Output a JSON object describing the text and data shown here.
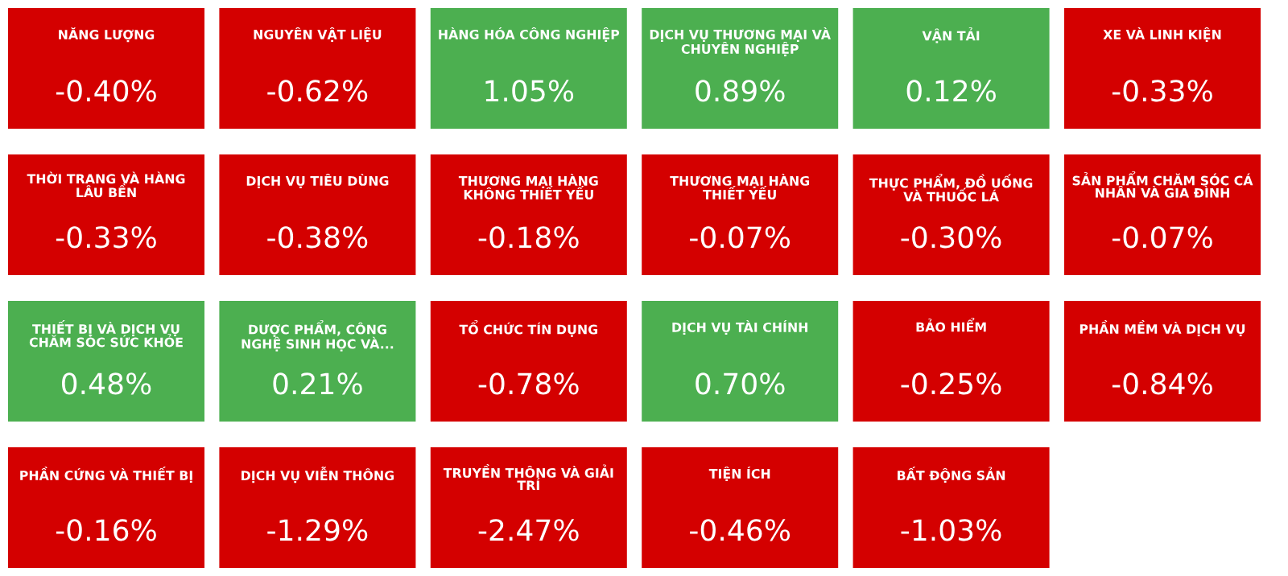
{
  "chart_data": {
    "type": "other",
    "categories": [
      "NĂNG LƯỢNG",
      "NGUYÊN VẬT LIỆU",
      "HÀNG HÓA CÔNG NGHIỆP",
      "DỊCH VỤ THƯƠNG MẠI VÀ\nCHUYÊN NGHIỆP",
      "VẬN TẢI",
      "XE VÀ LINH KIỆN",
      "THỜI TRANG VÀ HÀNG\nLÂU BỀN",
      "DỊCH VỤ TIÊU DÙNG",
      "THƯƠNG MẠI HÀNG\nKHÔNG THIẾT YẾU",
      "THƯƠNG MẠI HÀNG\nTHIẾT YẾU",
      "THỰC PHẨM, ĐỒ UỐNG\nVÀ THUỐC LÁ",
      "SẢN PHẨM CHĂM SÓC CÁ\nNHÂN VÀ GIA ĐÌNH",
      "THIẾT BỊ VÀ DỊCH VỤ\nCHĂM SÓC SỨC KHỎE",
      "DƯỢC PHẨM, CÔNG\nNGHỆ SINH HỌC VÀ...",
      "TỔ CHỨC TÍN DỤNG",
      "DỊCH VỤ TÀI CHÍNH",
      "BẢO HIỂM",
      "PHẦN MỀM VÀ DỊCH VỤ",
      "PHẦN CỨNG VÀ THIẾT BỊ",
      "DỊCH VỤ VIỄN THÔNG",
      "TRUYỀN THÔNG VÀ GIẢI\nTRÍ",
      "TIỆN ÍCH",
      "BẤT ĐỘNG SẢN"
    ],
    "values": [
      -0.4,
      -0.62,
      1.05,
      0.89,
      0.12,
      -0.33,
      -0.33,
      -0.38,
      -0.18,
      -0.07,
      -0.3,
      -0.07,
      0.48,
      0.21,
      -0.78,
      0.7,
      -0.25,
      -0.84,
      -0.16,
      -1.29,
      -2.47,
      -0.46,
      -1.03
    ],
    "value_labels": [
      "-0.40%",
      "-0.62%",
      "1.05%",
      "0.89%",
      "0.12%",
      "-0.33%",
      "-0.33%",
      "-0.38%",
      "-0.18%",
      "-0.07%",
      "-0.30%",
      "-0.07%",
      "0.48%",
      "0.21%",
      "-0.78%",
      "0.70%",
      "-0.25%",
      "-0.84%",
      "-0.16%",
      "-1.29%",
      "-2.47%",
      "-0.46%",
      "-1.03%"
    ],
    "colors": [
      "#d40000",
      "#d40000",
      "#4caf50",
      "#4caf50",
      "#4caf50",
      "#d40000",
      "#d40000",
      "#d40000",
      "#d40000",
      "#d40000",
      "#d40000",
      "#d40000",
      "#4caf50",
      "#4caf50",
      "#d40000",
      "#4caf50",
      "#d40000",
      "#d40000",
      "#d40000",
      "#d40000",
      "#d40000",
      "#d40000",
      "#d40000"
    ]
  }
}
